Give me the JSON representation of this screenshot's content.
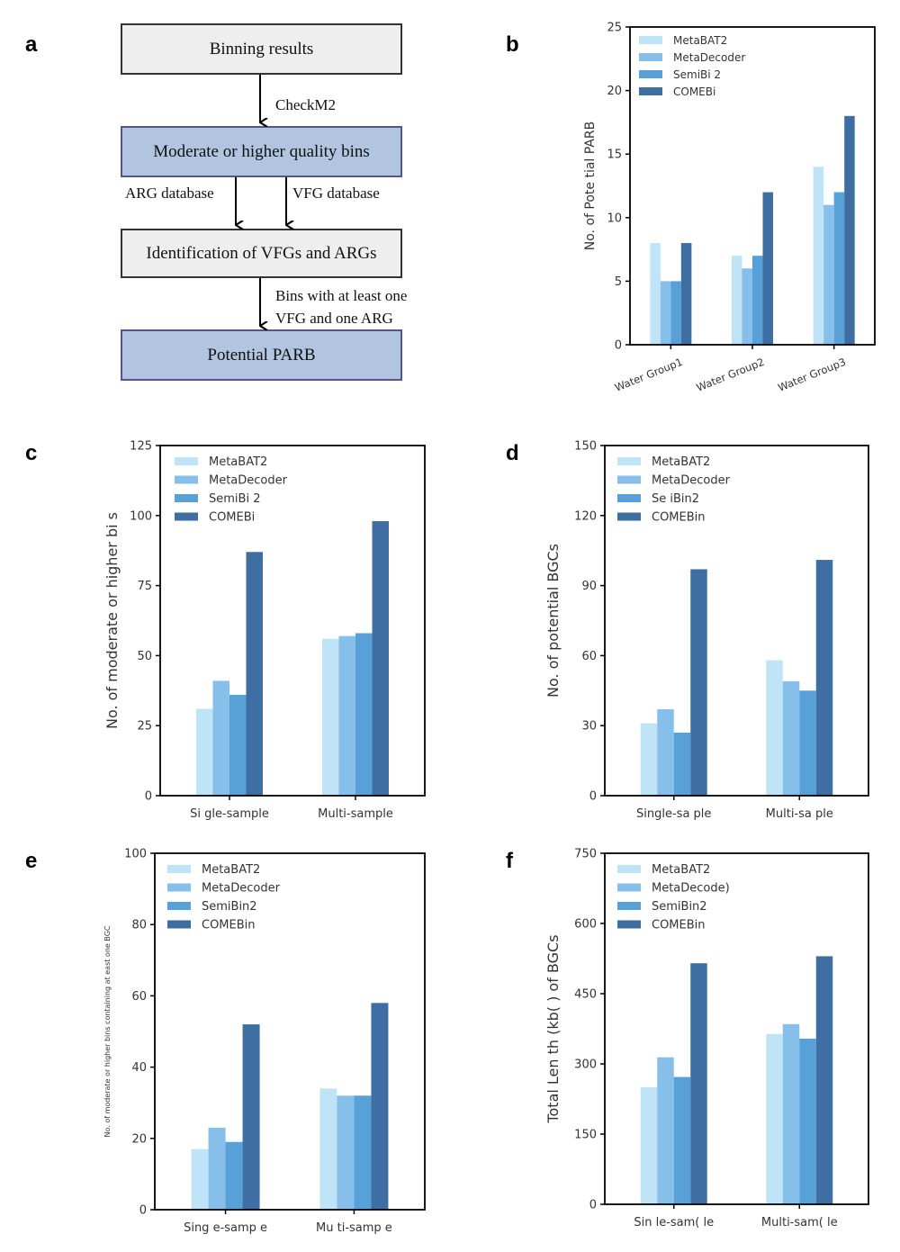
{
  "panels": {
    "a": "a",
    "b": "b",
    "c": "c",
    "d": "d",
    "e": "e",
    "f": "f"
  },
  "flowchart": {
    "boxes": [
      "Binning results",
      "Moderate or higher quality bins",
      "Identification of VFGs and ARGs",
      "Potential PARB"
    ],
    "edge_labels": {
      "checkm2": "CheckM2",
      "arg_db": "ARG database",
      "vfg_db": "VFG database",
      "bins_line1": "Bins with at least one",
      "bins_line2": "VFG and one ARG"
    }
  },
  "colors": {
    "MetaBAT2": "#bfe3f7",
    "MetaDecoder": "#85bfea",
    "SemiBin2": "#57a0d8",
    "COMEBin": "#3f6ea3"
  },
  "chart_data": [
    {
      "id": "b",
      "type": "bar",
      "title": "",
      "xlabel": "",
      "ylabel": "No. of Pote  tial PARB",
      "ylim": [
        0,
        25
      ],
      "yticks": [
        0,
        5,
        10,
        15,
        20,
        25
      ],
      "categories": [
        "Water Group1",
        "Water Group2",
        "Water Group3"
      ],
      "tick_rotation": "rotated",
      "legend_position": "top-left",
      "series": [
        {
          "name": "MetaBAT2",
          "legend_label": "MetaBAT2",
          "values": [
            8,
            7,
            14
          ]
        },
        {
          "name": "MetaDecoder",
          "legend_label": "MetaDecoder",
          "values": [
            5,
            6,
            11
          ]
        },
        {
          "name": "SemiBin2",
          "legend_label": "SemiBi  2",
          "values": [
            5,
            7,
            12
          ]
        },
        {
          "name": "COMEBin",
          "legend_label": "COMEBi",
          "values": [
            8,
            12,
            18
          ]
        }
      ]
    },
    {
      "id": "c",
      "type": "bar",
      "title": "",
      "xlabel": "",
      "ylabel": "No. of moderate or higher bi  s",
      "ylim": [
        0,
        125
      ],
      "yticks": [
        0,
        25,
        50,
        75,
        100,
        125
      ],
      "categories": [
        "Si  gle-sample",
        "Multi-sample"
      ],
      "legend_position": "top-left",
      "series": [
        {
          "name": "MetaBAT2",
          "legend_label": "MetaBAT2",
          "values": [
            31,
            56
          ]
        },
        {
          "name": "MetaDecoder",
          "legend_label": "MetaDecoder",
          "values": [
            41,
            57
          ]
        },
        {
          "name": "SemiBin2",
          "legend_label": "SemiBi  2",
          "values": [
            36,
            58
          ]
        },
        {
          "name": "COMEBin",
          "legend_label": "COMEBi",
          "values": [
            87,
            98
          ]
        }
      ]
    },
    {
      "id": "d",
      "type": "bar",
      "title": "",
      "xlabel": "",
      "ylabel": "No. of potential BGCs",
      "ylim": [
        0,
        150
      ],
      "yticks": [
        0,
        30,
        60,
        90,
        120,
        150
      ],
      "categories": [
        "Single-sa    ple",
        "Multi-sa    ple"
      ],
      "legend_position": "top-left",
      "series": [
        {
          "name": "MetaBAT2",
          "legend_label": "MetaBAT2",
          "values": [
            31,
            58
          ]
        },
        {
          "name": "MetaDecoder",
          "legend_label": "MetaDecoder",
          "values": [
            37,
            49
          ]
        },
        {
          "name": "SemiBin2",
          "legend_label": "Se    iBin2",
          "values": [
            27,
            45
          ]
        },
        {
          "name": "COMEBin",
          "legend_label": "COMEBin",
          "values": [
            97,
            101
          ]
        }
      ]
    },
    {
      "id": "e",
      "type": "bar",
      "title": "",
      "xlabel": "",
      "ylabel": "No. of moderate or higher bins containing at  east one BGC",
      "ylim": [
        0,
        100
      ],
      "yticks": [
        0,
        20,
        40,
        60,
        80,
        100
      ],
      "categories": [
        "Sing e-samp e",
        "Mu ti-samp e"
      ],
      "legend_position": "top-left",
      "series": [
        {
          "name": "MetaBAT2",
          "legend_label": "MetaBAT2",
          "values": [
            17,
            34
          ]
        },
        {
          "name": "MetaDecoder",
          "legend_label": "MetaDecoder",
          "values": [
            23,
            32
          ]
        },
        {
          "name": "SemiBin2",
          "legend_label": "SemiBin2",
          "values": [
            19,
            32
          ]
        },
        {
          "name": "COMEBin",
          "legend_label": "COMEBin",
          "values": [
            52,
            58
          ]
        }
      ]
    },
    {
      "id": "f",
      "type": "bar",
      "title": "",
      "xlabel": "",
      "ylabel": "Total Len  th (kb( ) of BGCs",
      "ylim": [
        0,
        750
      ],
      "yticks": [
        0,
        150,
        300,
        450,
        600,
        750
      ],
      "categories": [
        "Sin  le-sam( le",
        "Multi-sam( le"
      ],
      "legend_position": "top-left",
      "series": [
        {
          "name": "MetaBAT2",
          "legend_label": "MetaBAT2",
          "values": [
            250,
            364
          ]
        },
        {
          "name": "MetaDecoder",
          "legend_label": "MetaDecode)",
          "values": [
            314,
            385
          ]
        },
        {
          "name": "SemiBin2",
          "legend_label": "SemiBin2",
          "values": [
            272,
            354
          ]
        },
        {
          "name": "COMEBin",
          "legend_label": "COMEBin",
          "values": [
            515,
            530
          ]
        }
      ]
    }
  ]
}
